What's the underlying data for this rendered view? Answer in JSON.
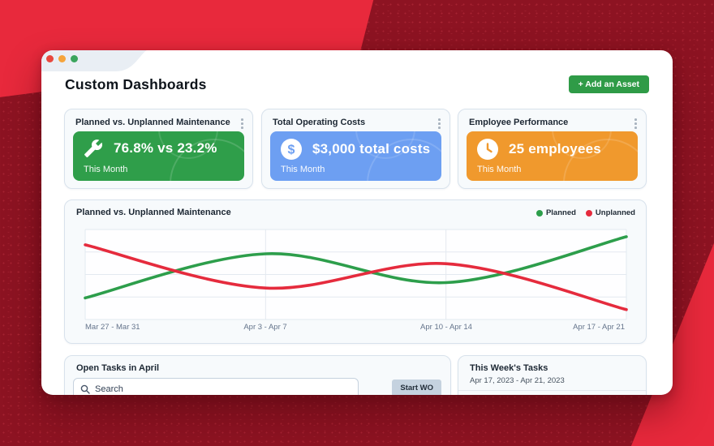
{
  "background": {
    "bright_red": "#E8293C",
    "dark_red": "#8D1322"
  },
  "window": {
    "title": "Custom Dashboards",
    "add_asset_button": "+ Add an Asset",
    "traffic_lights": [
      "red",
      "orange",
      "green"
    ]
  },
  "stat_cards": [
    {
      "title": "Planned vs. Unplanned Maintenance",
      "value": "76.8% vs 23.2%",
      "period": "This Month",
      "color": "#2F9E4A",
      "icon": "wrench-icon"
    },
    {
      "title": "Total Operating Costs",
      "value": "$3,000 total costs",
      "period": "This Month",
      "color": "#6D9FF2",
      "icon": "dollar-icon"
    },
    {
      "title": "Employee Performance",
      "value": "25 employees",
      "period": "This Month",
      "color": "#F0992D",
      "icon": "clock-icon"
    }
  ],
  "chart_data": {
    "type": "line",
    "title": "Planned vs. Unplanned Maintenance",
    "categories": [
      "Mar 27 - Mar 31",
      "Apr 3 - Apr 7",
      "Apr 10 - Apr 14",
      "Apr 17 - Apr 21"
    ],
    "series": [
      {
        "name": "Planned",
        "color": "#2D9E4B",
        "values": [
          24,
          73,
          41,
          92
        ]
      },
      {
        "name": "Unplanned",
        "color": "#E52B3D",
        "values": [
          83,
          35,
          62,
          11
        ]
      }
    ],
    "ylim": [
      0,
      100
    ],
    "yticks_hidden": true,
    "grid": true,
    "legend_position": "top-right",
    "curve": "smooth"
  },
  "open_tasks": {
    "title": "Open Tasks in April",
    "search_placeholder": "Search",
    "start_wo_button": "Start WO"
  },
  "week_tasks": {
    "title": "This Week's Tasks",
    "date_range": "Apr 17, 2023 - Apr 21, 2023"
  }
}
